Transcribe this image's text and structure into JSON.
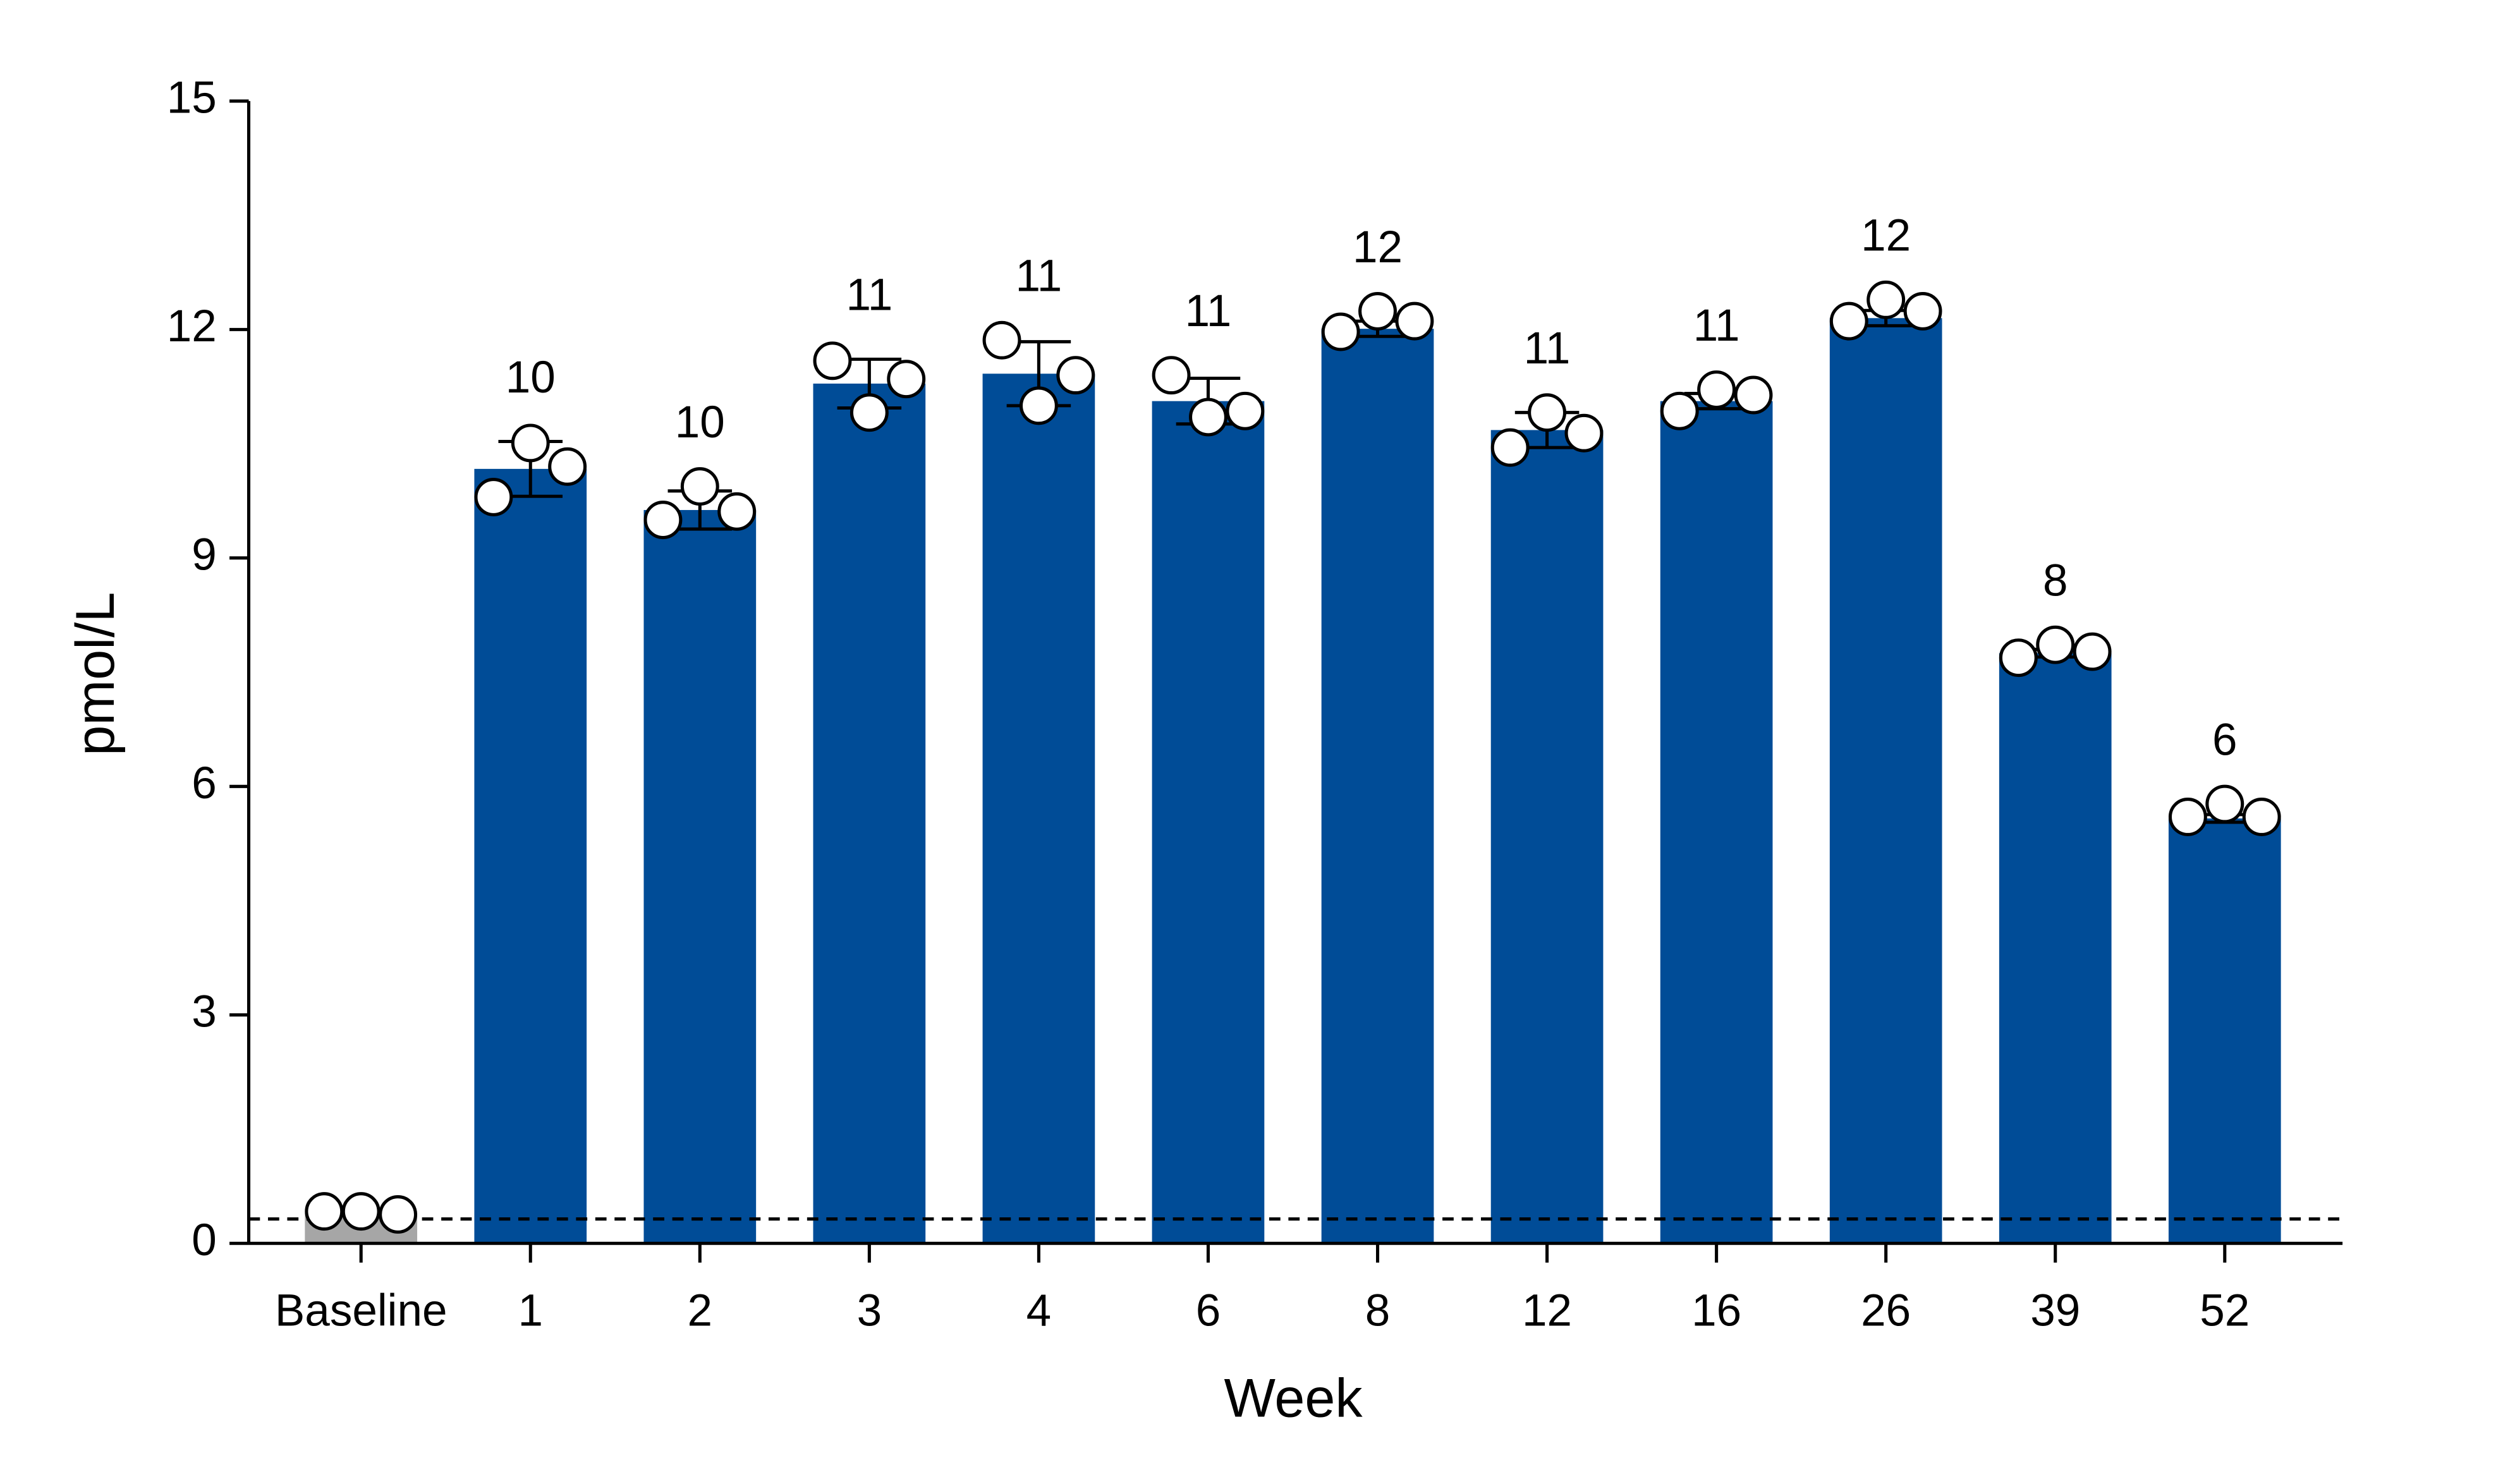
{
  "chart_data": {
    "type": "bar",
    "x_label": "Week",
    "y_label": "pmol/L",
    "categories": [
      "Baseline",
      "1",
      "2",
      "3",
      "4",
      "6",
      "8",
      "12",
      "16",
      "26",
      "39",
      "52"
    ],
    "values": [
      0.4,
      10.17,
      9.63,
      11.29,
      11.42,
      11.06,
      12.01,
      10.68,
      11.06,
      12.15,
      7.75,
      5.58
    ],
    "errors": [
      0.03,
      0.36,
      0.25,
      0.32,
      0.42,
      0.3,
      0.1,
      0.23,
      0.1,
      0.1,
      0.05,
      0.05
    ],
    "value_labels": [
      null,
      "10",
      "10",
      "11",
      "11",
      "11",
      "12",
      "11",
      "11",
      "12",
      "8",
      "6"
    ],
    "points": [
      [
        0.42,
        0.42,
        0.38
      ],
      [
        9.8,
        10.51,
        10.2
      ],
      [
        9.5,
        9.94,
        9.61
      ],
      [
        11.59,
        10.91,
        11.35
      ],
      [
        11.86,
        11.0,
        11.4
      ],
      [
        11.4,
        10.85,
        10.93
      ],
      [
        11.97,
        12.24,
        12.11
      ],
      [
        10.45,
        10.91,
        10.64
      ],
      [
        10.93,
        11.21,
        11.14
      ],
      [
        12.11,
        12.39,
        12.24
      ],
      [
        7.69,
        7.86,
        7.77
      ],
      [
        5.6,
        5.77,
        5.6
      ]
    ],
    "colors": [
      "#a6a6a6",
      "#004c97",
      "#004c97",
      "#004c97",
      "#004c97",
      "#004c97",
      "#004c97",
      "#004c97",
      "#004c97",
      "#004c97",
      "#004c97",
      "#004c97"
    ],
    "point_color": "#ffffff",
    "reference_line": 0.32,
    "ylim": [
      0,
      15
    ],
    "yticks": [
      0,
      3,
      6,
      9,
      12,
      15
    ]
  }
}
